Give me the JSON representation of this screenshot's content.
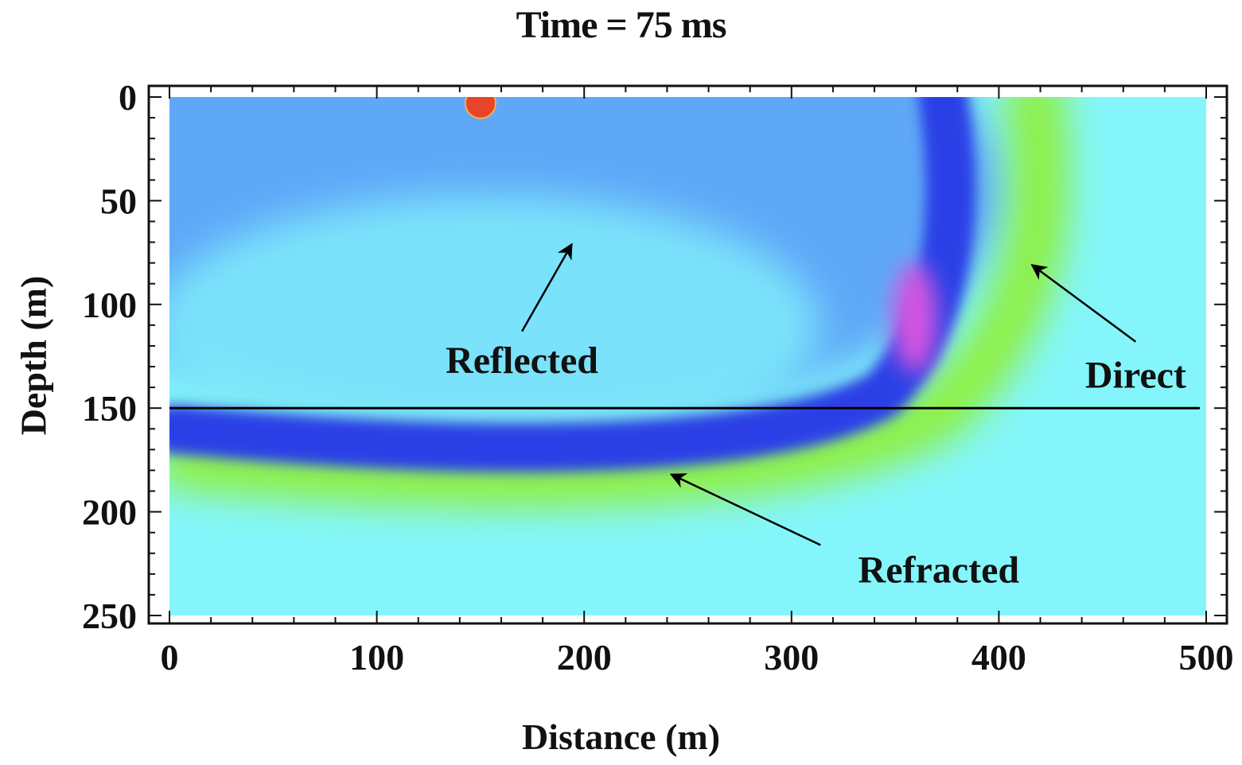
{
  "chart_data": {
    "type": "heatmap",
    "title": "Time = 75 ms",
    "xlabel": "Distance (m)",
    "ylabel": "Depth (m)",
    "xlim": [
      0,
      500
    ],
    "ylim": [
      0,
      250
    ],
    "y_inverted": true,
    "x_ticks": [
      "0",
      "100",
      "200",
      "300",
      "400",
      "500"
    ],
    "y_ticks": [
      "0",
      "50",
      "100",
      "150",
      "200",
      "250"
    ],
    "x_tick_values": [
      0,
      100,
      200,
      300,
      400,
      500
    ],
    "y_tick_values": [
      0,
      50,
      100,
      150,
      200,
      250
    ],
    "source": {
      "x": 150,
      "y": 3
    },
    "interface_depth": 150,
    "background_color": "#84f6fb",
    "colors": {
      "light_blue": "#5fa8f8",
      "dark_blue": "#2a3fe6",
      "magenta": "#d455e0",
      "green": "#8ef03a",
      "source": "#e8442a"
    },
    "annotations": [
      {
        "label": "Reflected",
        "text_pos": [
          170,
          127
        ],
        "tail": [
          170,
          113
        ],
        "head": [
          194,
          71
        ]
      },
      {
        "label": "Direct",
        "text_pos": [
          466,
          134
        ],
        "tail": [
          466,
          118
        ],
        "head": [
          416,
          81
        ]
      },
      {
        "label": "Refracted",
        "text_pos": [
          371,
          228
        ],
        "tail": [
          314,
          216
        ],
        "head": [
          242,
          182
        ]
      }
    ]
  }
}
